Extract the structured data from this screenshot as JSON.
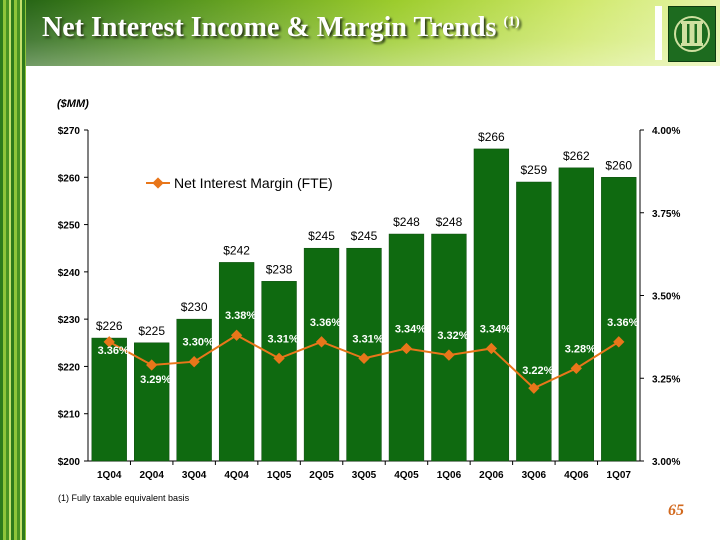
{
  "header": {
    "title": "Net Interest Income & Margin Trends",
    "title_superscript": "(1)"
  },
  "units_label": "($MM)",
  "footnote": "(1)  Fully taxable equivalent basis",
  "page_number": "65",
  "colors": {
    "bar": "#0f6a10",
    "line": "#e8761a",
    "header_dark": "#1f5d14",
    "header_light": "#e6f4a8"
  },
  "icons": {
    "logo": "bank-logo-icon"
  },
  "chart_data": {
    "type": "bar",
    "categories": [
      "1Q04",
      "2Q04",
      "3Q04",
      "4Q04",
      "1Q05",
      "2Q05",
      "3Q05",
      "4Q05",
      "1Q06",
      "2Q06",
      "3Q06",
      "4Q06",
      "1Q07"
    ],
    "series": [
      {
        "type": "bar",
        "axis": "left",
        "values": [
          226,
          225,
          230,
          242,
          238,
          245,
          245,
          248,
          248,
          266,
          259,
          262,
          260
        ],
        "labels": [
          "$226",
          "$225",
          "$230",
          "$242",
          "$238",
          "$245",
          "$245",
          "$248",
          "$248",
          "$266",
          "$259",
          "$262",
          "$260"
        ]
      },
      {
        "name": "Net Interest Margin (FTE)",
        "type": "line",
        "axis": "right",
        "values": [
          3.36,
          3.29,
          3.3,
          3.38,
          3.31,
          3.36,
          3.31,
          3.34,
          3.32,
          3.34,
          3.22,
          3.28,
          3.36
        ],
        "labels": [
          "3.36%",
          "3.29%",
          "3.30%",
          "3.38%",
          "3.31%",
          "3.36%",
          "3.31%",
          "3.34%",
          "3.32%",
          "3.34%",
          "3.22%",
          "3.28%",
          "3.36%"
        ]
      }
    ],
    "y_left": {
      "range": [
        200,
        270
      ],
      "ticks": [
        200,
        210,
        220,
        230,
        240,
        250,
        260,
        270
      ],
      "tick_labels": [
        "$200",
        "$210",
        "$220",
        "$230",
        "$240",
        "$250",
        "$260",
        "$270"
      ]
    },
    "y_right": {
      "range": [
        3.0,
        4.0
      ],
      "ticks": [
        3.0,
        3.25,
        3.5,
        3.75,
        4.0
      ],
      "tick_labels": [
        "3.00%",
        "3.25%",
        "3.50%",
        "3.75%",
        "4.00%"
      ]
    },
    "legend": {
      "placement": "top-left",
      "label": "Net Interest Margin (FTE)"
    },
    "grid": false
  }
}
